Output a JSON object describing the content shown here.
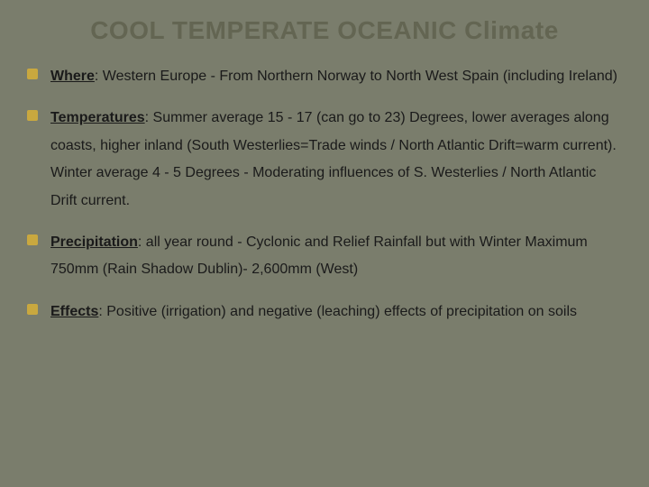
{
  "slide": {
    "title": "COOL TEMPERATE OCEANIC Climate",
    "background_color": "#7a7d6c",
    "title_color": "#636552",
    "text_color": "#1a1a1a",
    "bullet_color": "#c9a83f",
    "title_fontsize": 28,
    "body_fontsize": 16,
    "items": [
      {
        "heading": "Where",
        "text": ":  Western Europe - From Northern Norway to North West Spain (including Ireland)"
      },
      {
        "heading": "Temperatures",
        "text": ":  Summer average 15 - 17 (can go to 23) Degrees, lower averages along coasts, higher inland (South Westerlies=Trade winds / North Atlantic Drift=warm current).  Winter average 4 - 5 Degrees - Moderating influences of S. Westerlies / North Atlantic Drift current."
      },
      {
        "heading": "Precipitation",
        "text": ":   all year round - Cyclonic and Relief Rainfall but with Winter Maximum 750mm  (Rain Shadow Dublin)- 2,600mm (West)"
      },
      {
        "heading": "Effects",
        "text": ":  Positive (irrigation) and negative (leaching) effects of precipitation on soils"
      }
    ]
  }
}
